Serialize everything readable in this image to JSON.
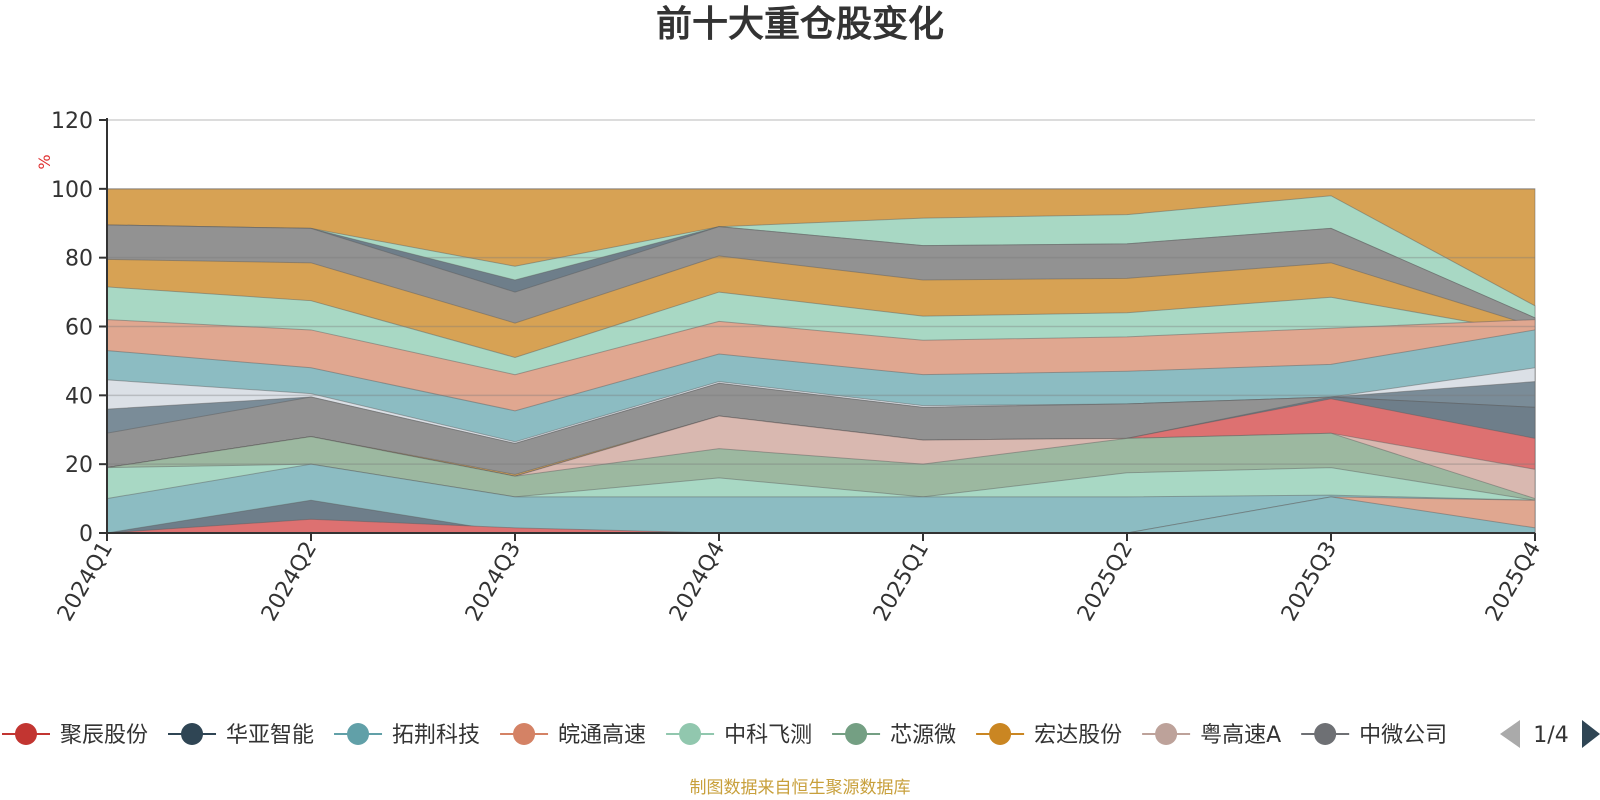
{
  "chart_data": {
    "type": "area",
    "title": "前十大重仓股变化",
    "ylabel": "%",
    "xlabel": "",
    "ylim": [
      0,
      120
    ],
    "yticks": [
      0,
      20,
      40,
      60,
      80,
      100,
      120
    ],
    "grid": true,
    "categories": [
      "2024Q1",
      "2024Q2",
      "2024Q3",
      "2024Q4",
      "2025Q1",
      "2025Q2",
      "2025Q3",
      "2025Q4"
    ],
    "layers": [
      {
        "color": "#d7a254",
        "values": [
          100,
          100,
          100,
          100,
          100,
          100,
          100,
          100
        ]
      },
      {
        "color": "#a8d8c4",
        "values": [
          89.5,
          88.5,
          77.5,
          89,
          91.5,
          92.5,
          98,
          66
        ]
      },
      {
        "color": "#6e7e8a",
        "values": [
          89.5,
          88.5,
          73.5,
          89,
          83.5,
          84,
          88.5,
          62.5
        ]
      },
      {
        "color": "#929292",
        "values": [
          89.5,
          88.5,
          70,
          89,
          83.5,
          84,
          88.5,
          62.5
        ]
      },
      {
        "color": "#d7a254",
        "values": [
          79.5,
          78.5,
          61,
          80.5,
          73.5,
          74,
          78.5,
          60
        ]
      },
      {
        "color": "#a8d8c4",
        "values": [
          71.5,
          67.5,
          51,
          70,
          63,
          64,
          68.5,
          58
        ]
      },
      {
        "color": "#e0a790",
        "values": [
          62,
          59,
          46,
          61.5,
          56,
          57,
          59.5,
          62
        ]
      },
      {
        "color": "#8cbcc2",
        "values": [
          53,
          48,
          35.5,
          52,
          46,
          47,
          49,
          59
        ]
      },
      {
        "color": "#dbe0e6",
        "values": [
          44.5,
          40.5,
          26.5,
          44,
          37,
          37.5,
          39.5,
          48
        ]
      },
      {
        "color": "#7a8c98",
        "values": [
          36,
          39.5,
          26,
          43.5,
          36.5,
          37.5,
          39.5,
          44
        ]
      },
      {
        "color": "#929292",
        "values": [
          29,
          39.5,
          26,
          43.5,
          36.5,
          37.5,
          39.5,
          36.5
        ]
      },
      {
        "color": "#d7a254",
        "values": [
          19,
          28,
          17,
          34,
          27,
          27.5,
          29,
          27.5
        ]
      },
      {
        "color": "#6e7e8a",
        "values": [
          19,
          28,
          16.5,
          34,
          27,
          27.5,
          39.5,
          36.5
        ]
      },
      {
        "color": "#dd7171",
        "values": [
          19,
          28,
          16.5,
          34,
          27,
          27.5,
          39,
          27.5
        ]
      },
      {
        "color": "#d9b8b0",
        "values": [
          19,
          28,
          16.5,
          34,
          27,
          27.5,
          29,
          18.5
        ]
      },
      {
        "color": "#9cb8a0",
        "values": [
          19,
          28,
          16.5,
          24.5,
          20,
          27.5,
          29,
          10
        ]
      },
      {
        "color": "#a8d8c4",
        "values": [
          19,
          20,
          10.5,
          16,
          10.5,
          17.5,
          19,
          9.5
        ]
      },
      {
        "color": "#8cbcc2",
        "values": [
          10,
          20,
          10.5,
          10.5,
          10.5,
          10.5,
          11,
          9.5
        ]
      },
      {
        "color": "#e0a790",
        "values": [
          0,
          0,
          0,
          0,
          0,
          0,
          10.5,
          9.5
        ]
      },
      {
        "color": "#8cbcc2",
        "values": [
          0,
          0,
          0,
          0,
          0,
          0,
          10.5,
          1.5
        ]
      },
      {
        "color": "#6e7e8a",
        "values": [
          0,
          9.5,
          0,
          0,
          0,
          0,
          0,
          0
        ]
      },
      {
        "color": "#dd7171",
        "values": [
          0,
          4,
          1.5,
          0,
          0,
          0,
          0,
          0
        ]
      }
    ],
    "legend": {
      "placement": "bottom",
      "items": [
        {
          "name": "聚辰股份",
          "color": "#c23531"
        },
        {
          "name": "华亚智能",
          "color": "#2f4554"
        },
        {
          "name": "拓荆科技",
          "color": "#61a0a8"
        },
        {
          "name": "皖通高速",
          "color": "#d48265"
        },
        {
          "name": "中科飞测",
          "color": "#91c7ae"
        },
        {
          "name": "芯源微",
          "color": "#749f83"
        },
        {
          "name": "宏达股份",
          "color": "#ca8622"
        },
        {
          "name": "粤高速A",
          "color": "#bda29a"
        },
        {
          "name": "中微公司",
          "color": "#6e7074"
        }
      ],
      "page": "1/4"
    }
  },
  "source_note": "制图数据来自恒生聚源数据库"
}
